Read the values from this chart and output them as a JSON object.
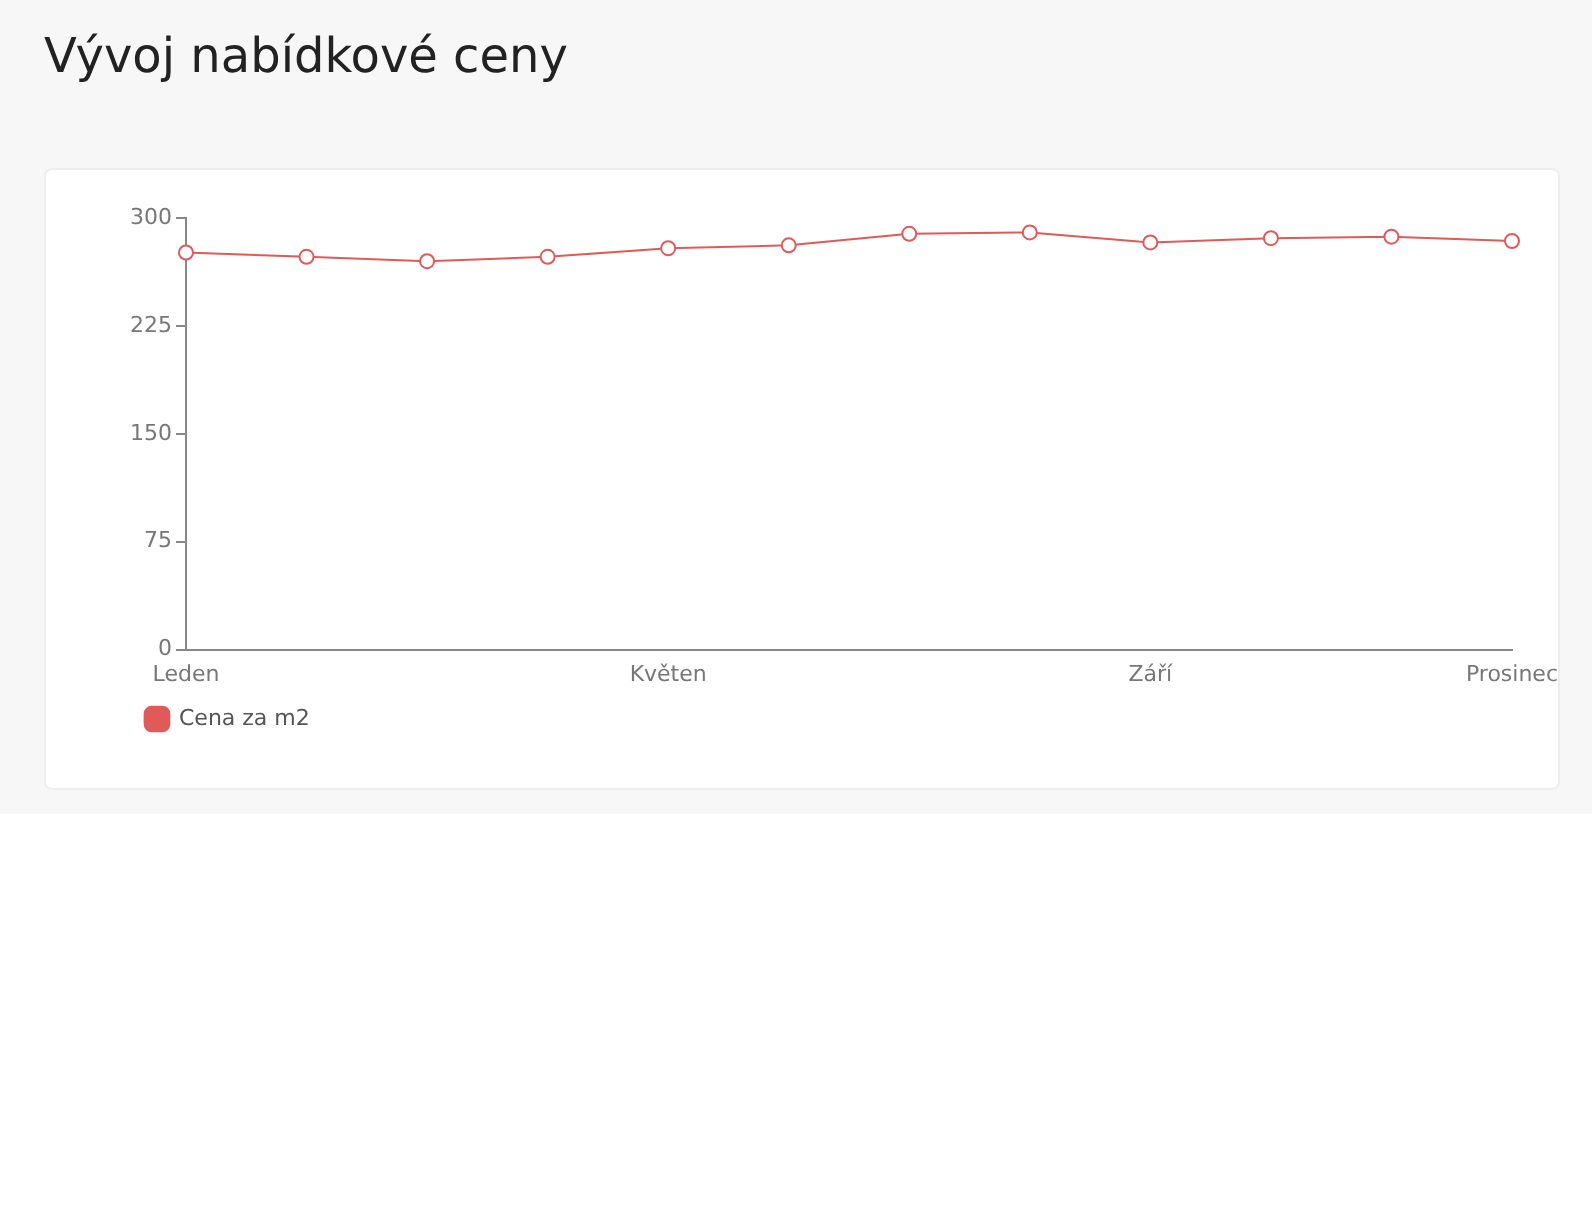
{
  "chart_data": {
    "type": "line",
    "title": "Vývoj nabídkové ceny",
    "categories": [
      "Leden",
      null,
      null,
      null,
      "Květen",
      null,
      null,
      null,
      "Září",
      null,
      null,
      "Prosinec"
    ],
    "series": [
      {
        "name": "Cena za m2",
        "color": "#e05a5a",
        "values": [
          276,
          273,
          270,
          273,
          279,
          281,
          289,
          290,
          283,
          286,
          287,
          284
        ]
      }
    ],
    "ylim": [
      0,
      300
    ],
    "yticks": [
      0,
      75,
      150,
      225,
      300
    ],
    "grid": false,
    "legend": "bottom left",
    "marker": "circle",
    "line_style": "solid"
  }
}
